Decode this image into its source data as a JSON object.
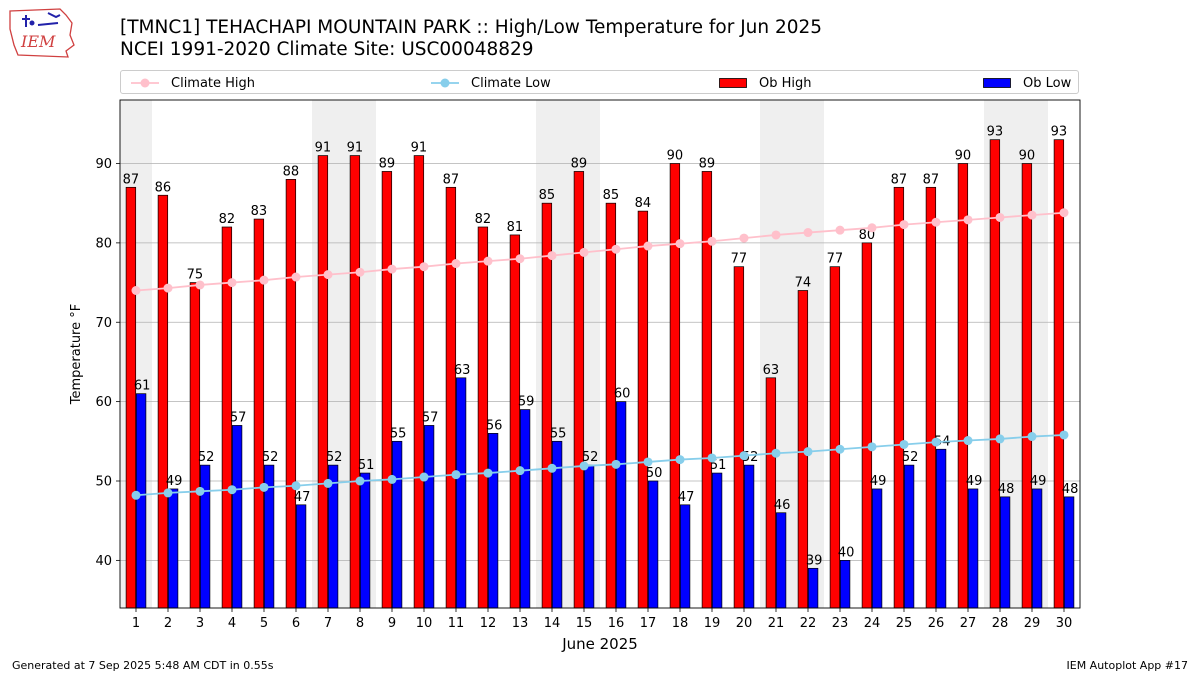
{
  "title_line1": "[TMNC1] TEHACHAPI MOUNTAIN PARK :: High/Low Temperature for Jun 2025",
  "title_line2": "NCEI 1991-2020 Climate Site: USC00048829",
  "logo_text": "IEM",
  "footer_left": "Generated at 7 Sep 2025 5:48 AM CDT in 0.55s",
  "footer_right": "IEM Autoplot App #17",
  "legend": [
    {
      "label": "Climate High",
      "color": "#ffc0cb",
      "kind": "line"
    },
    {
      "label": "Climate Low",
      "color": "#87ceeb",
      "kind": "line"
    },
    {
      "label": "Ob High",
      "color": "#ff0000",
      "kind": "bar"
    },
    {
      "label": "Ob Low",
      "color": "#0000ff",
      "kind": "bar"
    }
  ],
  "chart_data": {
    "type": "bar",
    "xlabel": "June 2025",
    "ylabel": "Temperature °F",
    "ylim": [
      34,
      98
    ],
    "yticks": [
      40,
      50,
      60,
      70,
      80,
      90
    ],
    "grid": true,
    "legend_position": "top",
    "weekend_shading_color": "#efefef",
    "weekend_days": [
      1,
      7,
      8,
      14,
      15,
      21,
      22,
      28,
      29
    ],
    "categories": [
      "1",
      "2",
      "3",
      "4",
      "5",
      "6",
      "7",
      "8",
      "9",
      "10",
      "11",
      "12",
      "13",
      "14",
      "15",
      "16",
      "17",
      "18",
      "19",
      "20",
      "21",
      "22",
      "23",
      "24",
      "25",
      "26",
      "27",
      "28",
      "29",
      "30"
    ],
    "series": [
      {
        "name": "Ob High",
        "type": "bar",
        "color": "#ff0000",
        "values": [
          87,
          86,
          75,
          82,
          83,
          88,
          91,
          91,
          89,
          91,
          87,
          82,
          81,
          85,
          89,
          85,
          84,
          90,
          89,
          77,
          63,
          74,
          77,
          80,
          87,
          87,
          90,
          93,
          90,
          93
        ]
      },
      {
        "name": "Ob Low",
        "type": "bar",
        "color": "#0000ff",
        "values": [
          61,
          49,
          52,
          57,
          52,
          47,
          52,
          51,
          55,
          57,
          63,
          56,
          59,
          55,
          52,
          60,
          50,
          47,
          51,
          52,
          46,
          39,
          40,
          49,
          52,
          54,
          49,
          48,
          49,
          48
        ]
      },
      {
        "name": "Climate High",
        "type": "line",
        "color": "#ffc0cb",
        "values": [
          74.0,
          74.3,
          74.7,
          75.0,
          75.3,
          75.7,
          76.0,
          76.3,
          76.7,
          77.0,
          77.4,
          77.7,
          78.0,
          78.4,
          78.8,
          79.2,
          79.6,
          79.9,
          80.2,
          80.6,
          81.0,
          81.3,
          81.6,
          81.9,
          82.3,
          82.6,
          82.9,
          83.2,
          83.5,
          83.8
        ]
      },
      {
        "name": "Climate Low",
        "type": "line",
        "color": "#87ceeb",
        "values": [
          48.2,
          48.5,
          48.7,
          48.9,
          49.2,
          49.4,
          49.7,
          50.0,
          50.2,
          50.5,
          50.8,
          51.0,
          51.3,
          51.6,
          51.9,
          52.1,
          52.4,
          52.7,
          52.9,
          53.2,
          53.5,
          53.7,
          54.0,
          54.3,
          54.6,
          54.9,
          55.1,
          55.3,
          55.6,
          55.8
        ]
      }
    ]
  }
}
